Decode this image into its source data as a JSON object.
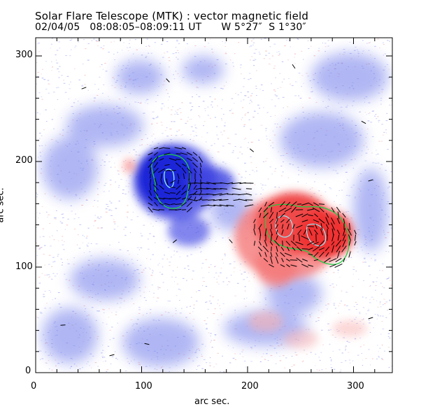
{
  "figure": {
    "title": "Solar Flare Telescope (MTK) : vector magnetic field",
    "subtitle": "02/04/05   08:08:05–08:09:11 UT      W 5°27″  S 1°30″",
    "xlabel": "arc sec.",
    "ylabel": "arc sec.",
    "xticks": [
      "0",
      "100",
      "200",
      "300"
    ],
    "yticks": [
      "0",
      "100",
      "200",
      "300"
    ],
    "colors": {
      "negative_polarity": "#3a3ee0",
      "positive_polarity": "#f03030",
      "contour_strong": "#22cc44",
      "contour_core": "#8ff0ff",
      "vectors": "#000000"
    }
  }
}
